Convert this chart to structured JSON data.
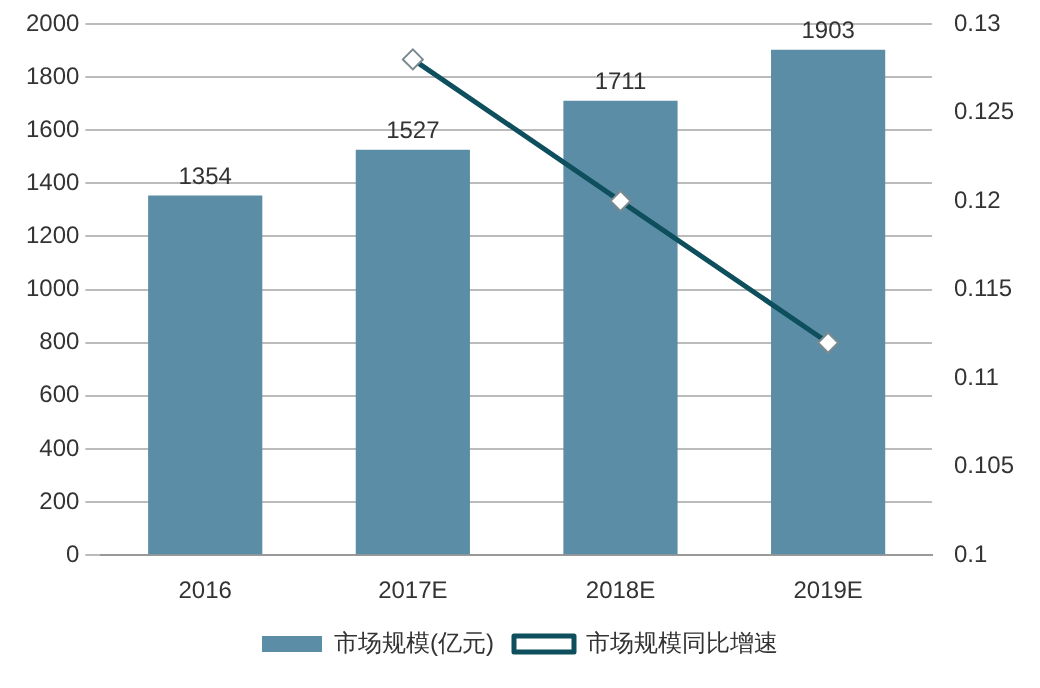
{
  "chart_data": {
    "type": "bar",
    "categories": [
      "2016",
      "2017E",
      "2018E",
      "2019E"
    ],
    "series": [
      {
        "name": "市场规模(亿元)",
        "color": "#5b8ea6",
        "values": [
          1354,
          1527,
          1711,
          1903
        ],
        "value_labels": [
          "1354",
          "1527",
          "1711",
          "1903"
        ]
      },
      {
        "name": "市场规模同比增速",
        "type": "line",
        "axis": "y2",
        "color": "#0e4f5e",
        "values": [
          null,
          0.128,
          0.12,
          0.112
        ],
        "marker": "diamond"
      }
    ],
    "ylim": [
      0,
      2000
    ],
    "yticks": [
      0,
      200,
      400,
      600,
      800,
      1000,
      1200,
      1400,
      1600,
      1800,
      2000
    ],
    "y2lim": [
      0.1,
      0.13
    ],
    "y2ticks": [
      0.1,
      0.105,
      0.11,
      0.115,
      0.12,
      0.125,
      0.13
    ],
    "grid": "y",
    "legend": "bottom"
  }
}
